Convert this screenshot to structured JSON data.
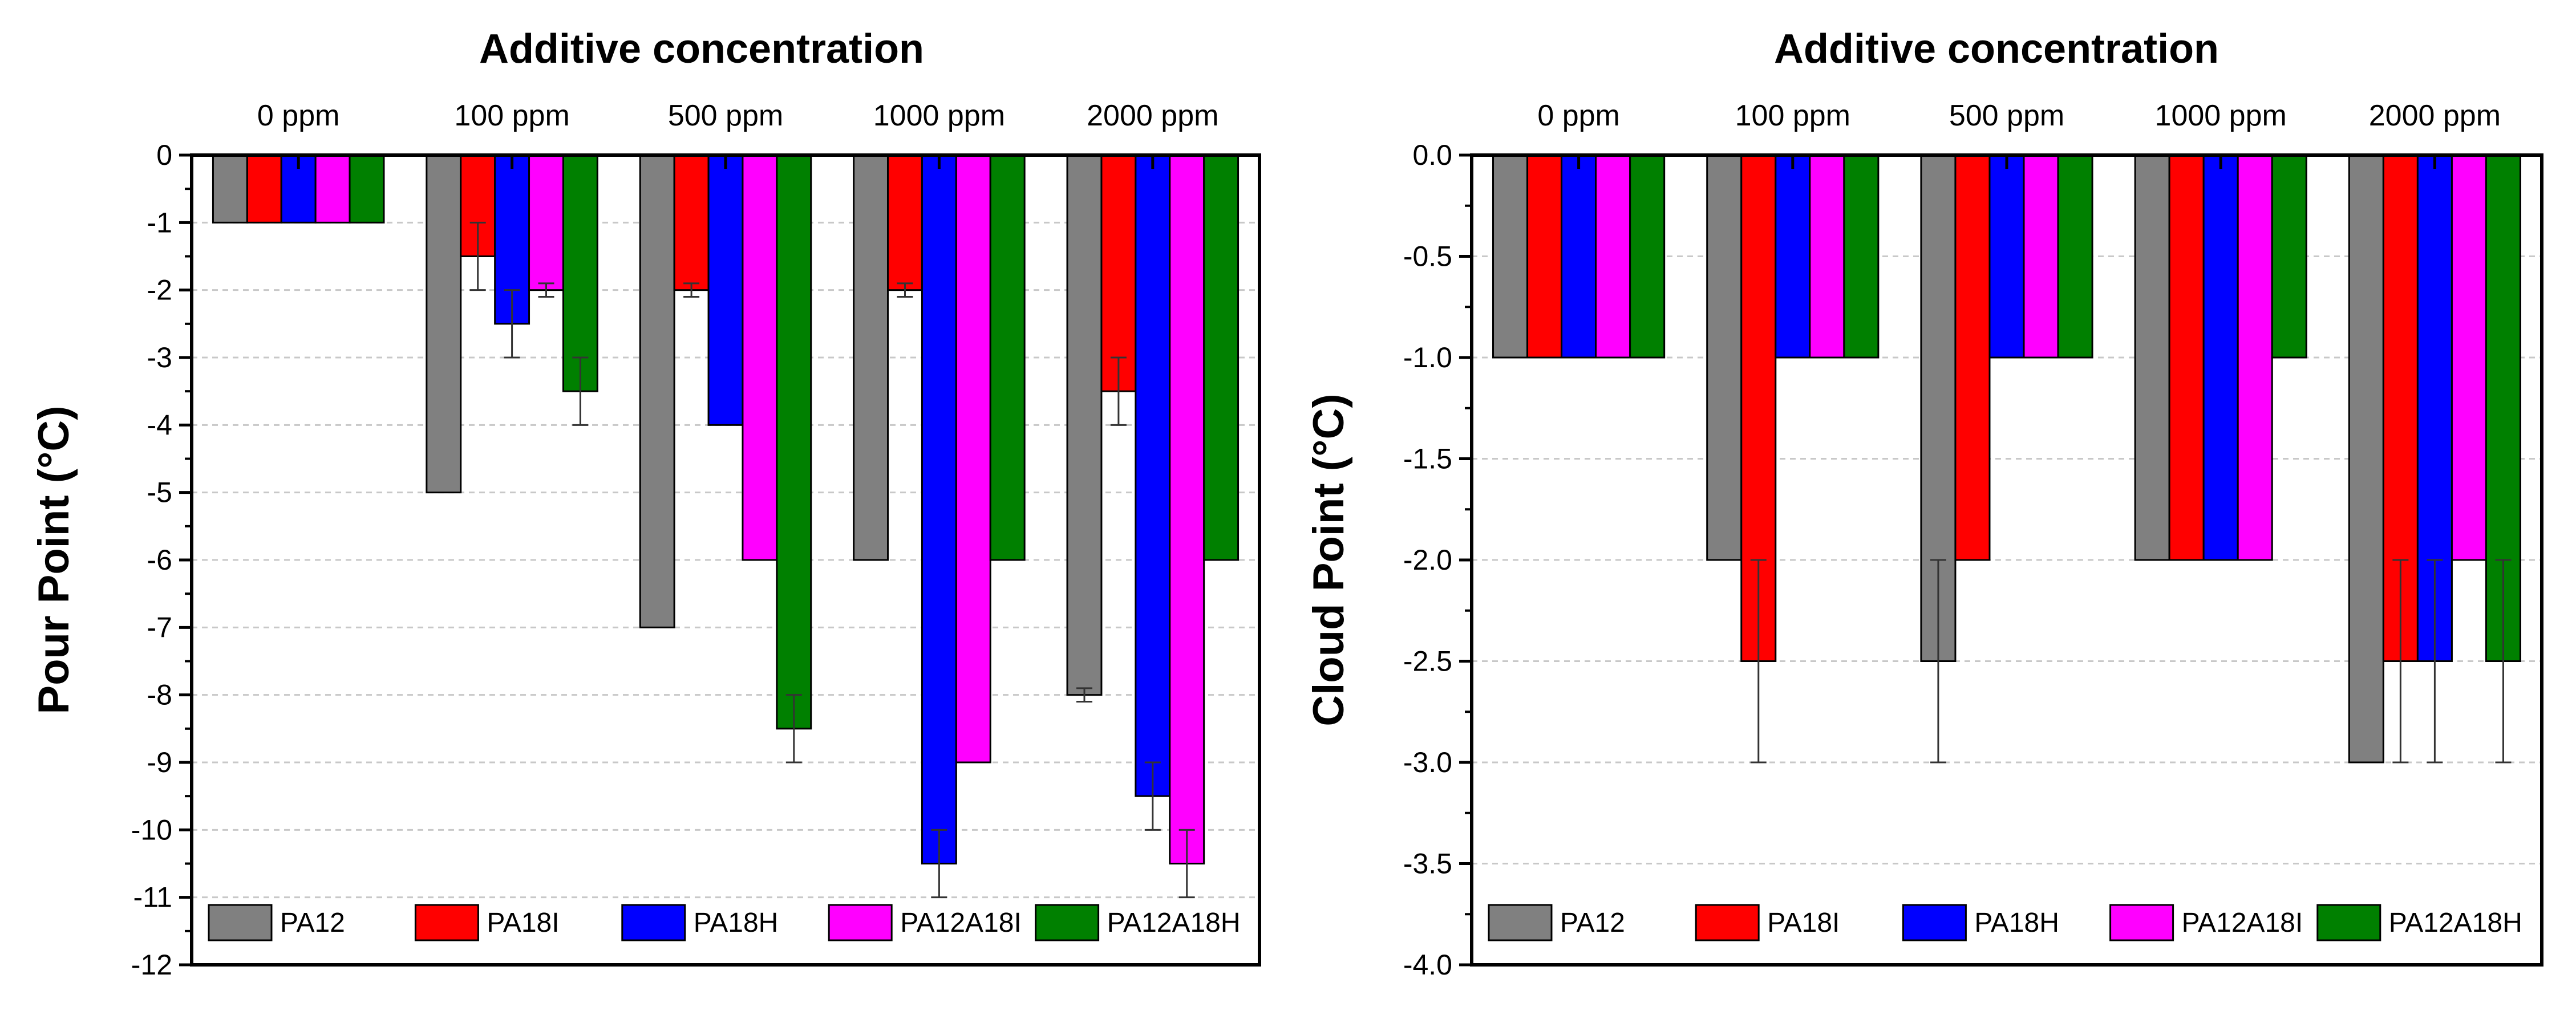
{
  "legend_labels": [
    "PA12",
    "PA18I",
    "PA18H",
    "PA12A18I",
    "PA12A18H"
  ],
  "colors": [
    "#808080",
    "#ff0000",
    "#0000ff",
    "#ff00ff",
    "#008000"
  ],
  "chart_data": [
    {
      "type": "bar",
      "title": "Additive concentration",
      "ylabel": "Pour Point (°C)",
      "categories": [
        "0 ppm",
        "100 ppm",
        "500 ppm",
        "1000 ppm",
        "2000 ppm"
      ],
      "ylim": [
        -12,
        0
      ],
      "yticks": [
        0,
        -1,
        -2,
        -3,
        -4,
        -5,
        -6,
        -7,
        -8,
        -9,
        -10,
        -11,
        -12
      ],
      "ytick_labels": [
        "0",
        "-1",
        "-2",
        "-3",
        "-4",
        "-5",
        "-6",
        "-7",
        "-8",
        "-9",
        "-10",
        "-11",
        "-12"
      ],
      "grid": true,
      "legend_position": "bottom",
      "series": [
        {
          "name": "PA12",
          "values": [
            -1,
            -5,
            -7,
            -6,
            -8
          ],
          "errors": [
            0,
            0,
            0,
            0,
            0.1
          ]
        },
        {
          "name": "PA18I",
          "values": [
            -1,
            -1.5,
            -2,
            -2,
            -3.5
          ],
          "errors": [
            0,
            0.5,
            0.1,
            0.1,
            0.5
          ]
        },
        {
          "name": "PA18H",
          "values": [
            -1,
            -2.5,
            -4,
            -10.5,
            -9.5
          ],
          "errors": [
            0,
            0.5,
            0,
            0.5,
            0.5
          ]
        },
        {
          "name": "PA12A18I",
          "values": [
            -1,
            -2,
            -6,
            -9,
            -10.5
          ],
          "errors": [
            0,
            0.1,
            0,
            0,
            0.5
          ]
        },
        {
          "name": "PA12A18H",
          "values": [
            -1,
            -3.5,
            -8.5,
            -6,
            -6
          ],
          "errors": [
            0,
            0.5,
            0.5,
            0,
            0
          ]
        }
      ]
    },
    {
      "type": "bar",
      "title": "Additive concentration",
      "ylabel": "Cloud Point (°C)",
      "categories": [
        "0 ppm",
        "100 ppm",
        "500 ppm",
        "1000 ppm",
        "2000 ppm"
      ],
      "ylim": [
        -4,
        0
      ],
      "yticks": [
        0,
        -0.5,
        -1,
        -1.5,
        -2,
        -2.5,
        -3,
        -3.5,
        -4
      ],
      "ytick_labels": [
        "0.0",
        "-0.5",
        "-1.0",
        "-1.5",
        "-2.0",
        "-2.5",
        "-3.0",
        "-3.5",
        "-4.0"
      ],
      "grid": true,
      "legend_position": "bottom",
      "series": [
        {
          "name": "PA12",
          "values": [
            -1,
            -2,
            -2.5,
            -2,
            -3
          ],
          "errors": [
            0,
            0,
            0.5,
            0,
            0
          ]
        },
        {
          "name": "PA18I",
          "values": [
            -1,
            -2.5,
            -2,
            -2,
            -2.5
          ],
          "errors": [
            0,
            0.5,
            0,
            0,
            0.5
          ]
        },
        {
          "name": "PA18H",
          "values": [
            -1,
            -1,
            -1,
            -2,
            -2.5
          ],
          "errors": [
            0,
            0,
            0,
            0,
            0.5
          ]
        },
        {
          "name": "PA12A18I",
          "values": [
            -1,
            -1,
            -1,
            -2,
            -2
          ],
          "errors": [
            0,
            0,
            0,
            0,
            0
          ]
        },
        {
          "name": "PA12A18H",
          "values": [
            -1,
            -1,
            -1,
            -1,
            -2.5
          ],
          "errors": [
            0,
            0,
            0,
            0,
            0.5
          ]
        }
      ]
    }
  ]
}
